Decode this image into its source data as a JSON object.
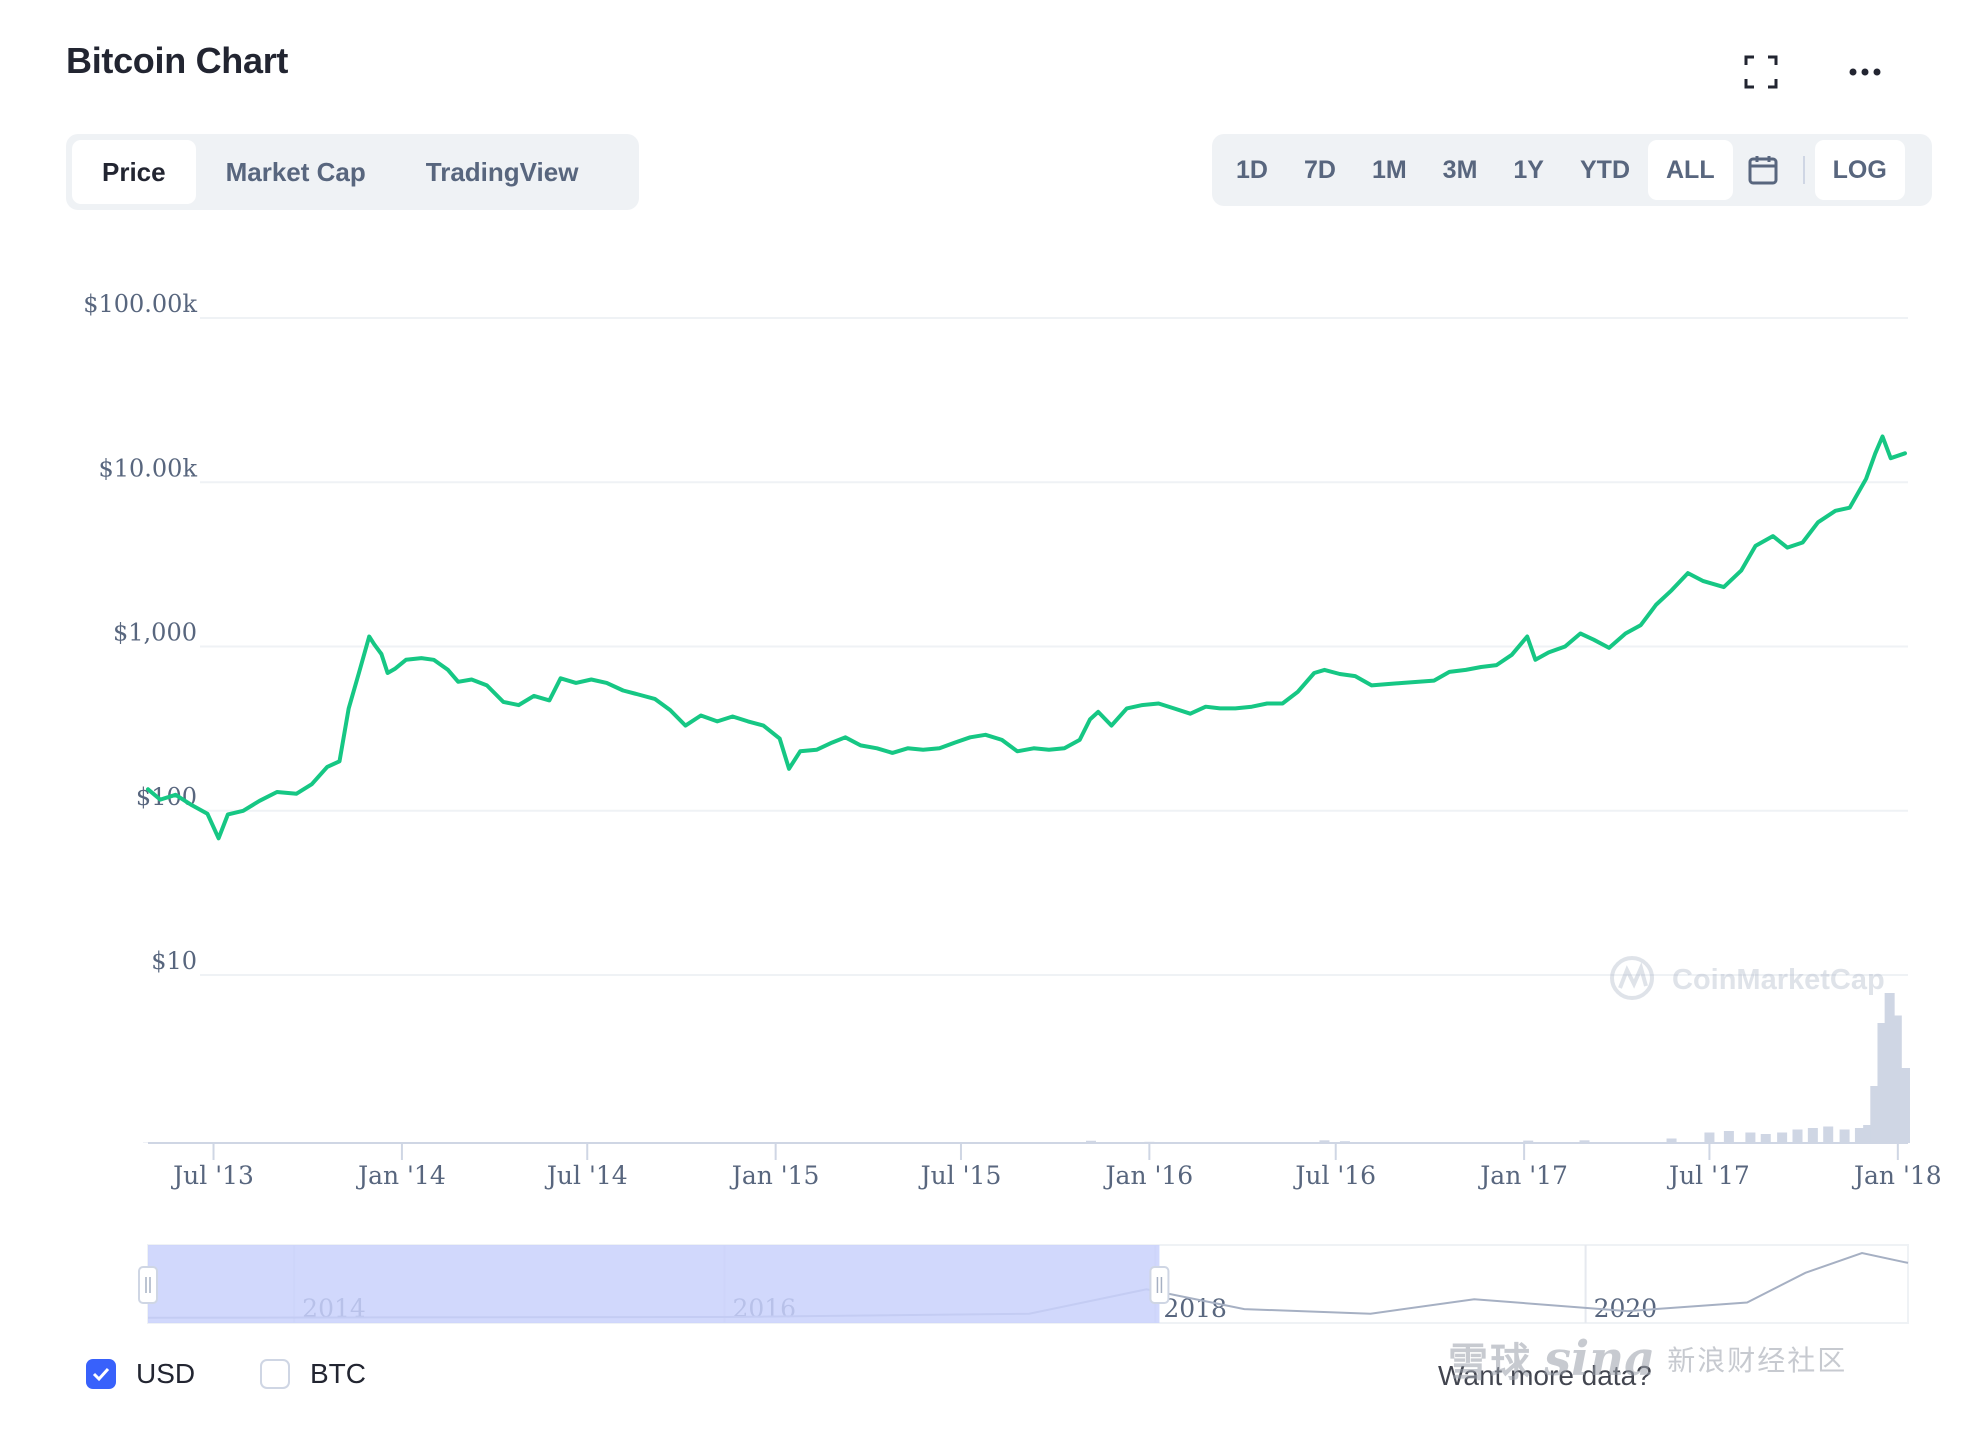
{
  "header": {
    "title": "Bitcoin Chart"
  },
  "tabs": [
    {
      "label": "Price",
      "active": true
    },
    {
      "label": "Market Cap",
      "active": false
    },
    {
      "label": "TradingView",
      "active": false
    }
  ],
  "ranges": [
    {
      "label": "1D",
      "active": false
    },
    {
      "label": "7D",
      "active": false
    },
    {
      "label": "1M",
      "active": false
    },
    {
      "label": "3M",
      "active": false
    },
    {
      "label": "1Y",
      "active": false
    },
    {
      "label": "YTD",
      "active": false
    },
    {
      "label": "ALL",
      "active": true
    }
  ],
  "scale_toggle": {
    "label": "LOG",
    "active": true
  },
  "icons": {
    "fullscreen": "fullscreen-icon",
    "more": "more-icon",
    "calendar": "calendar-icon"
  },
  "legend": {
    "usd": {
      "label": "USD",
      "checked": true
    },
    "btc": {
      "label": "BTC",
      "checked": false
    }
  },
  "footer": {
    "more_data_text": "Want more data?"
  },
  "watermark": {
    "brand": "CoinMarketCap",
    "sina_left": "雪球",
    "sina_logo": "sina",
    "sina_sub": "新浪财经社区"
  },
  "colors": {
    "line": "#16c784",
    "volume": "#cfd6e4",
    "navigator_fill": "#c9d1fb",
    "accent": "#3861fb"
  },
  "chart_data": {
    "type": "line",
    "y_scale": "log",
    "ylim": [
      10,
      100000
    ],
    "y_ticks": [
      {
        "value": 100000,
        "label": "$100.00k"
      },
      {
        "value": 10000,
        "label": "$10.00k"
      },
      {
        "value": 1000,
        "label": "$1,000"
      },
      {
        "value": 100,
        "label": "$100"
      },
      {
        "value": 10,
        "label": "$10"
      }
    ],
    "x_ticks": [
      {
        "date": "2013-07-01",
        "label": "Jul '13"
      },
      {
        "date": "2014-01-01",
        "label": "Jan '14"
      },
      {
        "date": "2014-07-01",
        "label": "Jul '14"
      },
      {
        "date": "2015-01-01",
        "label": "Jan '15"
      },
      {
        "date": "2015-07-01",
        "label": "Jul '15"
      },
      {
        "date": "2016-01-01",
        "label": "Jan '16"
      },
      {
        "date": "2016-07-01",
        "label": "Jul '16"
      },
      {
        "date": "2017-01-01",
        "label": "Jan '17"
      },
      {
        "date": "2017-07-01",
        "label": "Jul '17"
      },
      {
        "date": "2018-01-01",
        "label": "Jan '18"
      }
    ],
    "xlim": [
      "2013-04-28",
      "2018-01-08"
    ],
    "series": [
      {
        "x": [
          "2013-04-28",
          "2013-05-10",
          "2013-05-25",
          "2013-06-10",
          "2013-06-25",
          "2013-07-06",
          "2013-07-15",
          "2013-07-30",
          "2013-08-15",
          "2013-09-01",
          "2013-09-20",
          "2013-10-05",
          "2013-10-20",
          "2013-11-01",
          "2013-11-10",
          "2013-11-20",
          "2013-11-30",
          "2013-12-05",
          "2013-12-12",
          "2013-12-18",
          "2013-12-25",
          "2014-01-05",
          "2014-01-20",
          "2014-02-01",
          "2014-02-15",
          "2014-02-25",
          "2014-03-10",
          "2014-03-25",
          "2014-04-10",
          "2014-04-25",
          "2014-05-10",
          "2014-05-25",
          "2014-06-05",
          "2014-06-20",
          "2014-07-05",
          "2014-07-20",
          "2014-08-05",
          "2014-08-20",
          "2014-09-05",
          "2014-09-20",
          "2014-10-05",
          "2014-10-20",
          "2014-11-05",
          "2014-11-20",
          "2014-12-05",
          "2014-12-20",
          "2015-01-05",
          "2015-01-14",
          "2015-01-25",
          "2015-02-10",
          "2015-02-25",
          "2015-03-10",
          "2015-03-25",
          "2015-04-10",
          "2015-04-25",
          "2015-05-10",
          "2015-05-25",
          "2015-06-10",
          "2015-06-25",
          "2015-07-10",
          "2015-07-25",
          "2015-08-10",
          "2015-08-25",
          "2015-09-10",
          "2015-09-25",
          "2015-10-10",
          "2015-10-25",
          "2015-11-04",
          "2015-11-12",
          "2015-11-25",
          "2015-12-10",
          "2015-12-25",
          "2016-01-10",
          "2016-01-25",
          "2016-02-10",
          "2016-02-25",
          "2016-03-10",
          "2016-03-25",
          "2016-04-10",
          "2016-04-25",
          "2016-05-10",
          "2016-05-25",
          "2016-06-10",
          "2016-06-20",
          "2016-07-05",
          "2016-07-20",
          "2016-08-05",
          "2016-08-20",
          "2016-09-05",
          "2016-09-20",
          "2016-10-05",
          "2016-10-20",
          "2016-11-05",
          "2016-11-20",
          "2016-12-05",
          "2016-12-20",
          "2017-01-04",
          "2017-01-12",
          "2017-01-25",
          "2017-02-10",
          "2017-02-25",
          "2017-03-10",
          "2017-03-25",
          "2017-04-10",
          "2017-04-25",
          "2017-05-10",
          "2017-05-25",
          "2017-06-10",
          "2017-06-25",
          "2017-07-15",
          "2017-08-01",
          "2017-08-15",
          "2017-09-01",
          "2017-09-15",
          "2017-09-30",
          "2017-10-15",
          "2017-11-01",
          "2017-11-15",
          "2017-12-01",
          "2017-12-10",
          "2017-12-17",
          "2017-12-25",
          "2018-01-08"
        ],
        "y": [
          135,
          117,
          125,
          108,
          96,
          68,
          95,
          100,
          115,
          130,
          127,
          145,
          185,
          200,
          420,
          690,
          1150,
          1030,
          900,
          690,
          730,
          830,
          850,
          830,
          720,
          610,
          630,
          580,
          460,
          440,
          500,
          470,
          640,
          600,
          630,
          600,
          540,
          510,
          480,
          410,
          330,
          380,
          350,
          375,
          350,
          330,
          275,
          180,
          230,
          235,
          260,
          280,
          250,
          240,
          225,
          240,
          235,
          240,
          260,
          280,
          290,
          270,
          230,
          240,
          235,
          240,
          270,
          360,
          400,
          330,
          420,
          440,
          450,
          420,
          390,
          430,
          420,
          420,
          430,
          450,
          450,
          530,
          690,
          720,
          680,
          660,
          580,
          590,
          600,
          610,
          620,
          700,
          720,
          750,
          770,
          890,
          1150,
          830,
          920,
          1000,
          1200,
          1100,
          980,
          1200,
          1350,
          1800,
          2200,
          2800,
          2500,
          2300,
          2900,
          4100,
          4700,
          4000,
          4300,
          5700,
          6700,
          7000,
          10500,
          15000,
          19000,
          14000,
          15000
        ]
      }
    ],
    "volume": {
      "note": "trading volume bars (relative)",
      "x": [
        "2013-04-28",
        "2014-01-01",
        "2015-01-01",
        "2015-11-05",
        "2016-01-01",
        "2016-06-20",
        "2016-07-10",
        "2017-01-05",
        "2017-03-01",
        "2017-05-25",
        "2017-07-01",
        "2017-07-20",
        "2017-08-10",
        "2017-08-25",
        "2017-09-10",
        "2017-09-25",
        "2017-10-10",
        "2017-10-25",
        "2017-11-10",
        "2017-11-25",
        "2017-12-03",
        "2017-12-10",
        "2017-12-17",
        "2017-12-24",
        "2017-12-31",
        "2018-01-08"
      ],
      "v": [
        0.2,
        0.4,
        0.3,
        1.5,
        0.8,
        1.8,
        1.2,
        1.6,
        1.8,
        3,
        7,
        8,
        7,
        6,
        7,
        9,
        10,
        11,
        9,
        10,
        12,
        38,
        80,
        100,
        85,
        50
      ]
    }
  },
  "navigator": {
    "labels": [
      "2014",
      "2016",
      "2018",
      "2020"
    ],
    "range_start": "2013-04-28",
    "range_end": "2018-01-08"
  }
}
